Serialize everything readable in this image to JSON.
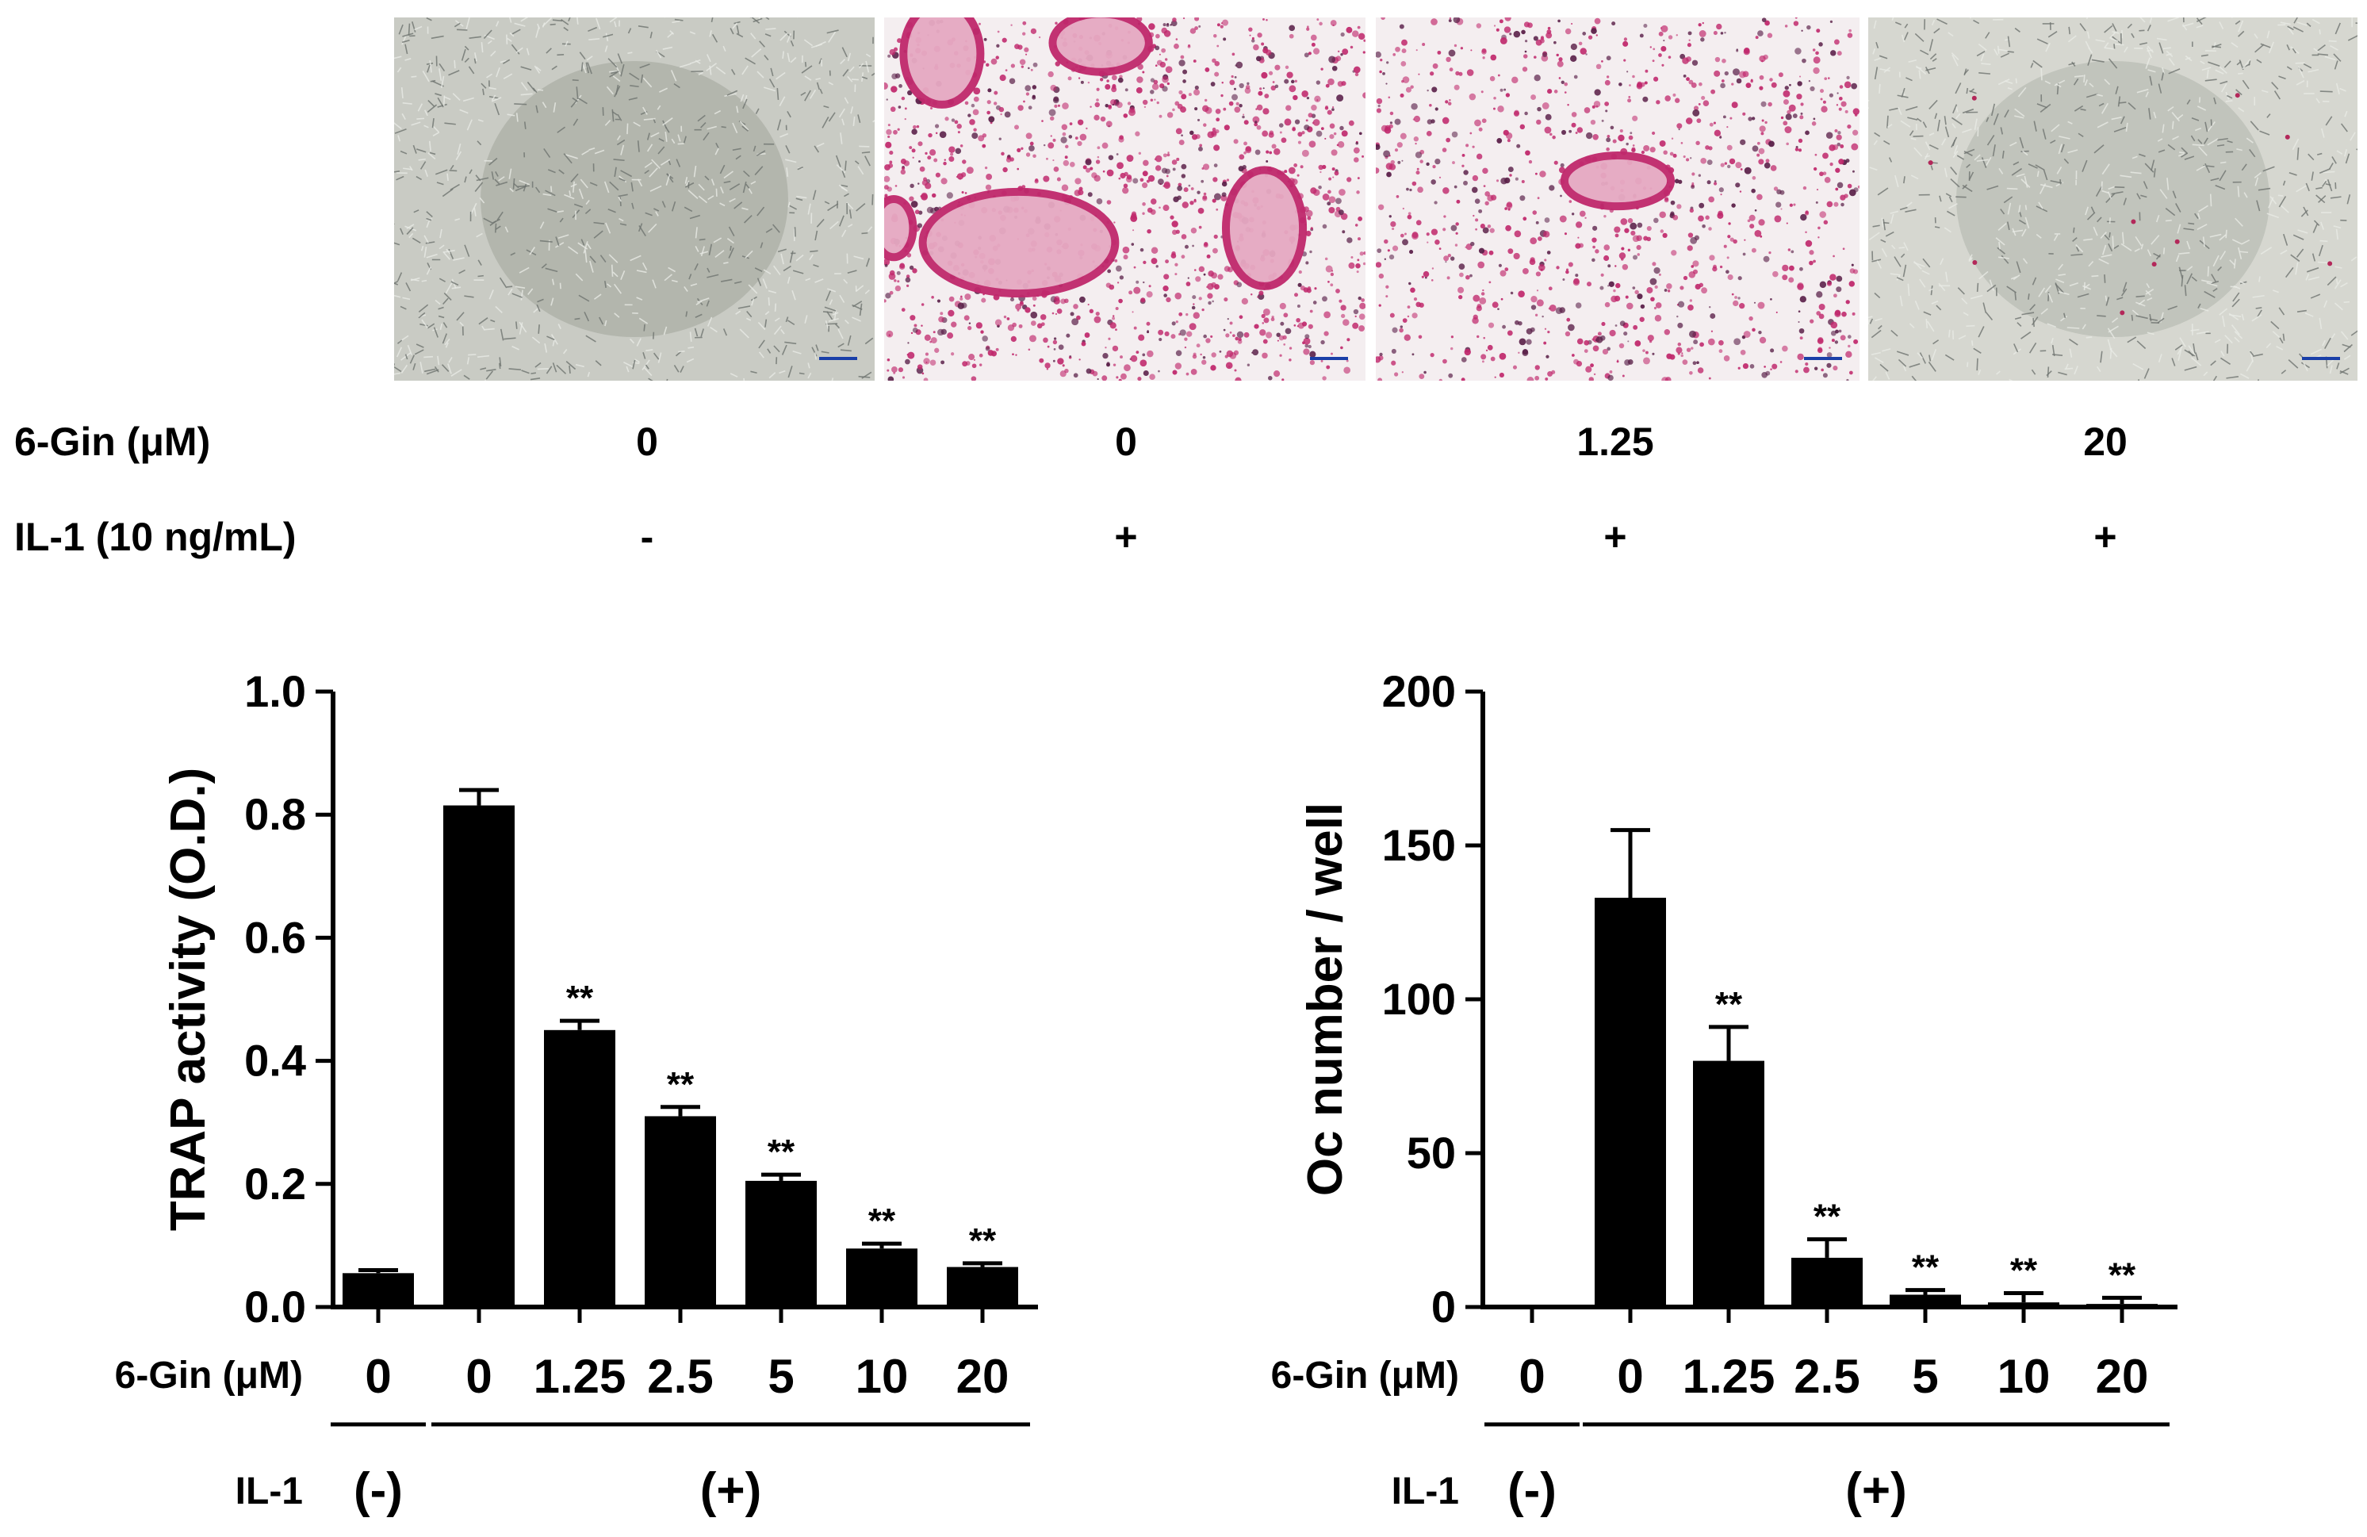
{
  "micrographs": [
    {
      "name": "micrograph-control",
      "dose": "0",
      "il1": "-",
      "palette": "gray"
    },
    {
      "name": "micrograph-il1-only",
      "dose": "0",
      "il1": "+",
      "palette": "magenta-heavy"
    },
    {
      "name": "micrograph-gin-1-25",
      "dose": "1.25",
      "il1": "+",
      "palette": "magenta-medium"
    },
    {
      "name": "micrograph-gin-20",
      "dose": "20",
      "il1": "+",
      "palette": "gray-faint"
    }
  ],
  "row_labels": {
    "gin": "6-Gin (μM)",
    "il1": "IL-1 (10 ng/mL)"
  },
  "chart_data": [
    {
      "type": "bar",
      "ylabel": "TRAP activity (O.D.)",
      "ylim": [
        0,
        1.0
      ],
      "yticks": [
        "0.0",
        "0.2",
        "0.4",
        "0.6",
        "0.8",
        "1.0"
      ],
      "categories": [
        "0",
        "0",
        "1.25",
        "2.5",
        "5",
        "10",
        "20"
      ],
      "values": [
        0.055,
        0.815,
        0.45,
        0.31,
        0.205,
        0.095,
        0.065
      ],
      "errors": [
        0.005,
        0.025,
        0.015,
        0.015,
        0.01,
        0.008,
        0.006
      ],
      "significance": [
        "",
        "",
        "**",
        "**",
        "**",
        "**",
        "**"
      ],
      "x_row_label": "6-Gin (μM)",
      "il1_row_label": "IL-1",
      "il1_neg": "(-)",
      "il1_pos": "(+)",
      "bar_color": "#000000"
    },
    {
      "type": "bar",
      "ylabel": "Oc number / well",
      "ylim": [
        0,
        200
      ],
      "yticks": [
        "0",
        "50",
        "100",
        "150",
        "200"
      ],
      "categories": [
        "0",
        "0",
        "1.25",
        "2.5",
        "5",
        "10",
        "20"
      ],
      "values": [
        0,
        133,
        80,
        16,
        4,
        1.5,
        1
      ],
      "errors": [
        0,
        22,
        11,
        6,
        1.5,
        3,
        2
      ],
      "significance": [
        "",
        "",
        "**",
        "**",
        "**",
        "**",
        "**"
      ],
      "x_row_label": "6-Gin (μM)",
      "il1_row_label": "IL-1",
      "il1_neg": "(-)",
      "il1_pos": "(+)",
      "bar_color": "#000000"
    }
  ]
}
